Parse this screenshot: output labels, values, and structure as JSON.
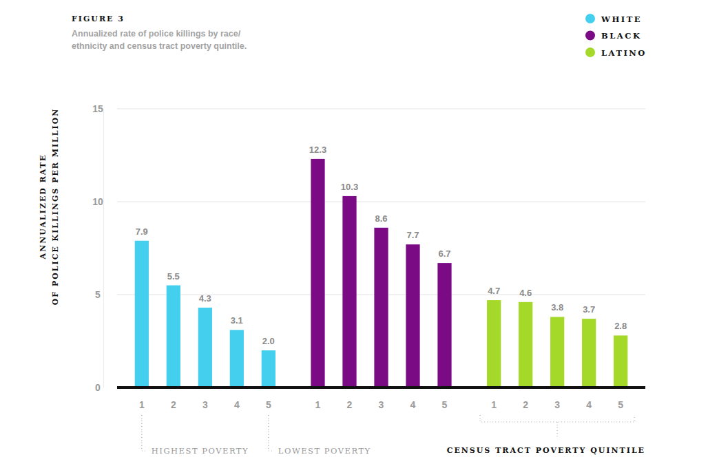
{
  "chart_data": {
    "type": "bar",
    "title": "FIGURE 3",
    "subtitle": [
      "Annualized rate of police killings by race/",
      "ethnicity and census tract poverty quintile."
    ],
    "y_label": [
      "ANNUALIZED RATE",
      "OF POLICE KILLINGS PER MILLION"
    ],
    "x_label": "CENSUS TRACT POVERTY QUINTILE",
    "annotations": [
      {
        "text": "HIGHEST POVERTY",
        "x": "1"
      },
      {
        "text": "LOWEST POVERTY",
        "x": "5"
      }
    ],
    "categories": [
      "1",
      "2",
      "3",
      "4",
      "5"
    ],
    "series": [
      {
        "name": "WHITE",
        "color": "#45cfee",
        "values": [
          7.9,
          5.5,
          4.3,
          3.1,
          2.0
        ],
        "value_labels": [
          "7.9",
          "5.5",
          "4.3",
          "3.1",
          "2.0"
        ]
      },
      {
        "name": "BLACK",
        "color": "#7b0a85",
        "values": [
          12.3,
          10.3,
          8.6,
          7.7,
          6.7
        ],
        "value_labels": [
          "12.3",
          "10.3",
          "8.6",
          "7.7",
          "6.7"
        ]
      },
      {
        "name": "LATINO",
        "color": "#a5d929",
        "values": [
          4.7,
          4.6,
          3.8,
          3.7,
          2.8
        ],
        "value_labels": [
          "4.7",
          "4.6",
          "3.8",
          "3.7",
          "2.8"
        ]
      }
    ],
    "ylim": [
      0,
      15
    ],
    "yticks": [
      0,
      5,
      10,
      15
    ],
    "grid": true,
    "legend": "top-right",
    "data_labels": true
  }
}
